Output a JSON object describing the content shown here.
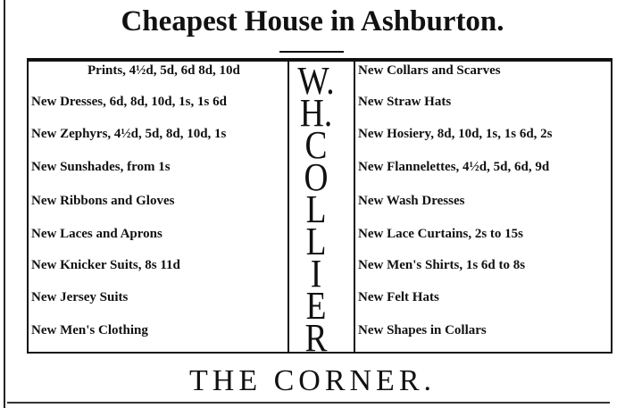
{
  "title": "Cheapest House in Ashburton.",
  "left_items": [
    "Prints, 4½d, 5d, 6d 8d, 10d",
    "New Dresses, 6d, 8d, 10d, 1s, 1s 6d",
    "New Zephyrs, 4½d, 5d, 8d, 10d, 1s",
    "New Sunshades, from 1s",
    "New Ribbons and Gloves",
    "New Laces and Aprons",
    "New Knicker Suits, 8s 11d",
    "New Jersey Suits",
    "New Men's Clothing"
  ],
  "right_items": [
    "New Collars and Scarves",
    "New Straw Hats",
    "New Hosiery, 8d, 10d, 1s, 1s 6d, 2s",
    "New Flannelettes, 4½d, 5d, 6d, 9d",
    "New Wash Dresses",
    "New Lace Curtains, 2s to 15s",
    "New Men's Shirts, 1s 6d to 8s",
    "New Felt Hats",
    "New Shapes in Collars"
  ],
  "name_letters": [
    "W.",
    "H.",
    "C",
    "O",
    "L",
    "L",
    "I",
    "E",
    "R"
  ],
  "footer": "THE CORNER."
}
